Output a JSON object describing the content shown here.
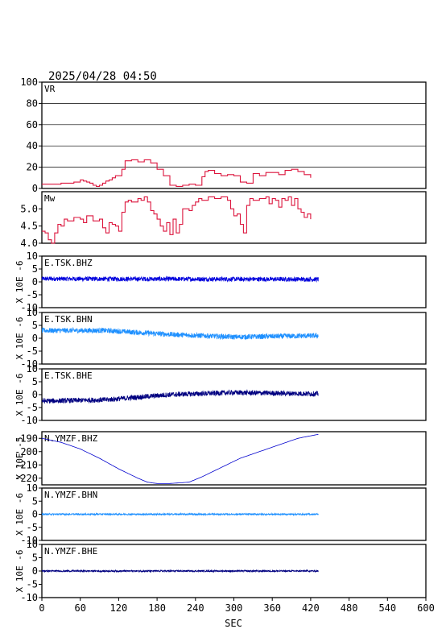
{
  "header": {
    "timestamp": "2025/04/28 04:50"
  },
  "colors": {
    "vr": "#dc143c",
    "mw": "#dc143c",
    "bhz": "#0000dd",
    "bhn": "#1e90ff",
    "bhe": "#000080",
    "ymzf_bhz": "#0000cd"
  },
  "chart_data": {
    "type": "line",
    "xlabel": "SEC",
    "xlim": [
      0,
      600
    ],
    "xticks": [
      "0",
      "60",
      "120",
      "180",
      "240",
      "300",
      "360",
      "420",
      "480",
      "540",
      "600"
    ],
    "panels": [
      {
        "id": "vr",
        "label": "VR",
        "ylim": [
          0,
          100
        ],
        "yticks": [
          "0",
          "20",
          "40",
          "60",
          "80",
          "100"
        ],
        "grid": true,
        "color_key": "vr",
        "series": {
          "x": [
            0,
            10,
            20,
            30,
            40,
            50,
            60,
            65,
            70,
            75,
            80,
            85,
            90,
            95,
            100,
            105,
            110,
            115,
            120,
            125,
            130,
            140,
            150,
            160,
            170,
            180,
            190,
            200,
            210,
            215,
            220,
            230,
            240,
            250,
            255,
            260,
            270,
            280,
            290,
            300,
            310,
            320,
            330,
            340,
            350,
            360,
            370,
            380,
            390,
            400,
            410,
            420
          ],
          "y": [
            4,
            4,
            4,
            5,
            5,
            6,
            8,
            7,
            6,
            5,
            3,
            2,
            3,
            5,
            7,
            8,
            10,
            12,
            12,
            18,
            26,
            27,
            25,
            27,
            24,
            18,
            12,
            3,
            2,
            2,
            3,
            4,
            3,
            11,
            16,
            17,
            14,
            12,
            13,
            12,
            6,
            5,
            14,
            12,
            15,
            15,
            13,
            17,
            18,
            16,
            13,
            10
          ]
        }
      },
      {
        "id": "mw",
        "label": "Mw",
        "ylim": [
          4.0,
          5.5
        ],
        "yticks": [
          "4.0",
          "4.5",
          "5.0"
        ],
        "grid": false,
        "color_key": "mw",
        "series": {
          "x": [
            0,
            5,
            10,
            15,
            20,
            25,
            30,
            35,
            40,
            50,
            60,
            65,
            70,
            80,
            90,
            95,
            100,
            105,
            110,
            115,
            120,
            125,
            130,
            135,
            140,
            150,
            155,
            160,
            165,
            170,
            175,
            180,
            185,
            190,
            195,
            200,
            205,
            210,
            215,
            220,
            230,
            235,
            240,
            245,
            250,
            260,
            270,
            280,
            290,
            295,
            300,
            305,
            310,
            315,
            320,
            325,
            330,
            340,
            350,
            355,
            360,
            365,
            370,
            375,
            380,
            385,
            390,
            395,
            400,
            405,
            410,
            415,
            420
          ],
          "y": [
            4.35,
            4.3,
            4.1,
            4.0,
            4.3,
            4.55,
            4.5,
            4.7,
            4.65,
            4.75,
            4.7,
            4.6,
            4.8,
            4.65,
            4.7,
            4.45,
            4.3,
            4.6,
            4.55,
            4.5,
            4.35,
            4.9,
            5.2,
            5.25,
            5.2,
            5.3,
            5.25,
            5.35,
            5.2,
            4.95,
            4.85,
            4.7,
            4.5,
            4.35,
            4.6,
            4.25,
            4.7,
            4.3,
            4.55,
            5.0,
            4.95,
            5.1,
            5.2,
            5.3,
            5.25,
            5.35,
            5.3,
            5.35,
            5.25,
            5.0,
            4.8,
            4.85,
            4.55,
            4.3,
            5.1,
            5.3,
            5.25,
            5.3,
            5.35,
            5.15,
            5.3,
            5.25,
            5.05,
            5.3,
            5.25,
            5.35,
            5.1,
            5.3,
            5.0,
            4.9,
            4.75,
            4.85,
            4.7
          ]
        }
      },
      {
        "id": "e_tsk_bhz",
        "label": "E.TSK.BHZ",
        "ylabel": "X 10E -6",
        "ylim": [
          -10,
          10
        ],
        "yticks": [
          "-10",
          "-5",
          "0",
          "5",
          "10"
        ],
        "color_key": "bhz",
        "trend": {
          "x": [
            0,
            432
          ],
          "y": [
            1.2,
            1.0
          ]
        },
        "noise_amplitude": 0.9
      },
      {
        "id": "e_tsk_bhn",
        "label": "E.TSK.BHN",
        "ylabel": "X 10E -6",
        "ylim": [
          -10,
          10
        ],
        "yticks": [
          "-10",
          "-5",
          "0",
          "5",
          "10"
        ],
        "color_key": "bhn",
        "trend": {
          "x": [
            0,
            100,
            200,
            300,
            432
          ],
          "y": [
            3.0,
            3.0,
            1.5,
            0.5,
            1.0
          ]
        },
        "noise_amplitude": 1.0
      },
      {
        "id": "e_tsk_bhe",
        "label": "E.TSK.BHE",
        "ylabel": "X 10E -6",
        "ylim": [
          -10,
          10
        ],
        "yticks": [
          "-10",
          "-5",
          "0",
          "5",
          "10"
        ],
        "color_key": "bhe",
        "trend": {
          "x": [
            0,
            100,
            200,
            300,
            432
          ],
          "y": [
            -2.5,
            -2.0,
            0.0,
            0.8,
            0.3
          ]
        },
        "noise_amplitude": 1.0
      },
      {
        "id": "n_ymzf_bhz",
        "label": "N.YMZF.BHZ",
        "ylabel": "X 10E -5",
        "ylim": [
          -225,
          -185
        ],
        "yticks": [
          "-220",
          "-210",
          "-200",
          "-190"
        ],
        "color_key": "ymzf_bhz",
        "trend": {
          "x": [
            0,
            30,
            60,
            90,
            120,
            150,
            165,
            180,
            200,
            230,
            250,
            280,
            310,
            340,
            370,
            400,
            432
          ],
          "y": [
            -190,
            -193,
            -198,
            -205,
            -213,
            -220,
            -223,
            -224,
            -224,
            -223,
            -219,
            -212,
            -205,
            -200,
            -195,
            -190,
            -187
          ]
        },
        "noise_amplitude": 0
      },
      {
        "id": "n_ymzf_bhn",
        "label": "N.YMZF.BHN",
        "ylabel": "X 10E -6",
        "ylim": [
          -10,
          10
        ],
        "yticks": [
          "-10",
          "-5",
          "0",
          "5",
          "10"
        ],
        "color_key": "bhn",
        "trend": {
          "x": [
            0,
            432
          ],
          "y": [
            0.0,
            0.0
          ]
        },
        "noise_amplitude": 0.3
      },
      {
        "id": "n_ymzf_bhe",
        "label": "N.YMZF.BHE",
        "ylabel": "X 10E -6",
        "ylim": [
          -10,
          10
        ],
        "yticks": [
          "-10",
          "-5",
          "0",
          "5",
          "10"
        ],
        "color_key": "bhe",
        "trend": {
          "x": [
            0,
            432
          ],
          "y": [
            0.0,
            0.0
          ]
        },
        "noise_amplitude": 0.3
      }
    ]
  }
}
